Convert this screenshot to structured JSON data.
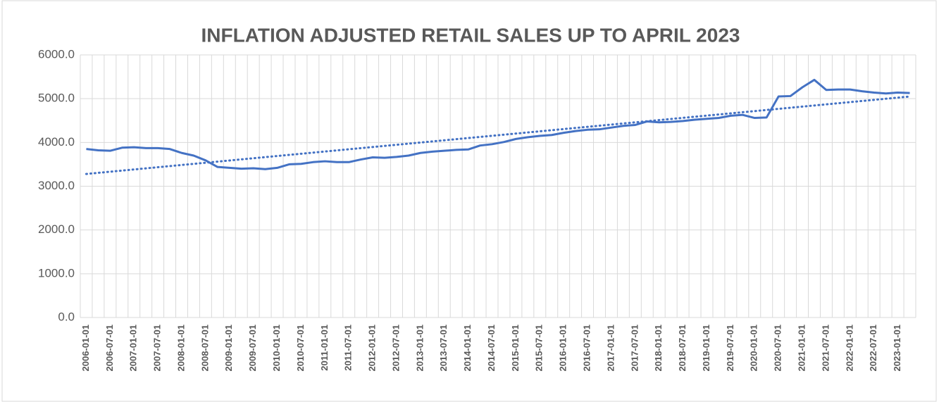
{
  "chart_data": {
    "type": "line",
    "title": "INFLATION ADJUSTED RETAIL SALES UP TO APRIL 2023",
    "categories": [
      "2006-01-01",
      null,
      "2006-07-01",
      null,
      "2007-01-01",
      null,
      "2007-07-01",
      null,
      "2008-01-01",
      null,
      "2008-07-01",
      null,
      "2009-01-01",
      null,
      "2009-07-01",
      null,
      "2010-01-01",
      null,
      "2010-07-01",
      null,
      "2011-01-01",
      null,
      "2011-07-01",
      null,
      "2012-01-01",
      null,
      "2012-07-01",
      null,
      "2013-01-01",
      null,
      "2013-07-01",
      null,
      "2014-01-01",
      null,
      "2014-07-01",
      null,
      "2015-01-01",
      null,
      "2015-07-01",
      null,
      "2016-01-01",
      null,
      "2016-07-01",
      null,
      "2017-01-01",
      null,
      "2017-07-01",
      null,
      "2018-01-01",
      null,
      "2018-07-01",
      null,
      "2019-01-01",
      null,
      "2019-07-01",
      null,
      "2020-01-01",
      null,
      "2020-07-01",
      null,
      "2021-01-01",
      null,
      "2021-07-01",
      null,
      "2022-01-01",
      null,
      "2022-07-01",
      null,
      "2023-01-01",
      null
    ],
    "series": [
      {
        "color": "#4472c4",
        "values": [
          3850,
          3820,
          3810,
          3880,
          3890,
          3870,
          3870,
          3850,
          3760,
          3700,
          3590,
          3440,
          3420,
          3400,
          3410,
          3390,
          3420,
          3500,
          3510,
          3550,
          3570,
          3550,
          3550,
          3610,
          3660,
          3650,
          3670,
          3700,
          3760,
          3790,
          3810,
          3830,
          3840,
          3930,
          3960,
          4010,
          4080,
          4120,
          4150,
          4170,
          4220,
          4260,
          4290,
          4300,
          4340,
          4380,
          4400,
          4480,
          4460,
          4470,
          4490,
          4520,
          4540,
          4560,
          4610,
          4630,
          4560,
          4570,
          5050,
          5060,
          5260,
          5430,
          5200,
          5210,
          5210,
          5170,
          5140,
          5120,
          5140,
          5130
        ]
      }
    ],
    "trendline": {
      "values": [
        3280,
        5050
      ],
      "color": "#4472c4",
      "style": "dotted"
    },
    "ylim": [
      0,
      6000
    ],
    "yticks": [
      {
        "value": 0,
        "label": "0.0"
      },
      {
        "value": 1000,
        "label": "1000.0"
      },
      {
        "value": 2000,
        "label": "2000.0"
      },
      {
        "value": 3000,
        "label": "3000.0"
      },
      {
        "value": 4000,
        "label": "4000.0"
      },
      {
        "value": 5000,
        "label": "5000.0"
      },
      {
        "value": 6000,
        "label": "6000.0"
      }
    ],
    "grid": true
  }
}
